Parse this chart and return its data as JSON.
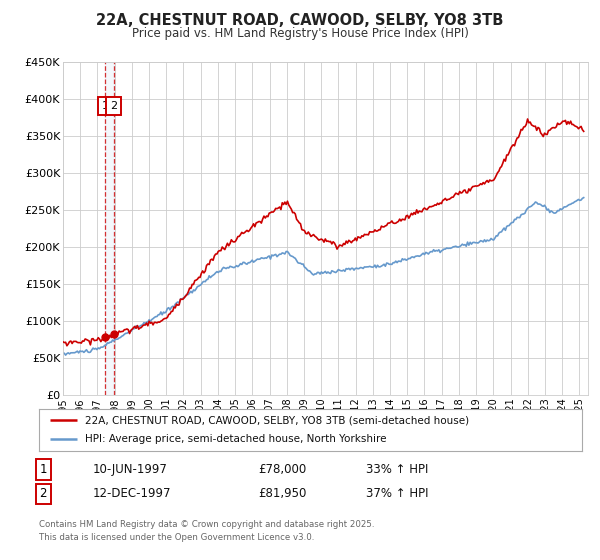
{
  "title": "22A, CHESTNUT ROAD, CAWOOD, SELBY, YO8 3TB",
  "subtitle": "Price paid vs. HM Land Registry's House Price Index (HPI)",
  "legend_label_red": "22A, CHESTNUT ROAD, CAWOOD, SELBY, YO8 3TB (semi-detached house)",
  "legend_label_blue": "HPI: Average price, semi-detached house, North Yorkshire",
  "xmin": 1995.0,
  "xmax": 2025.5,
  "ymin": 0,
  "ymax": 450000,
  "yticks": [
    0,
    50000,
    100000,
    150000,
    200000,
    250000,
    300000,
    350000,
    400000,
    450000
  ],
  "ytick_labels": [
    "£0",
    "£50K",
    "£100K",
    "£150K",
    "£200K",
    "£250K",
    "£300K",
    "£350K",
    "£400K",
    "£450K"
  ],
  "color_red": "#cc0000",
  "color_blue": "#6699cc",
  "color_vline": "#cc0000",
  "background_color": "#ffffff",
  "plot_bg_color": "#ffffff",
  "grid_color": "#cccccc",
  "transaction1_x": 1997.44,
  "transaction2_x": 1997.95,
  "transaction1_y": 78000,
  "transaction2_y": 81950,
  "annotation1": "1",
  "annotation2": "2",
  "table_row1": [
    "1",
    "10-JUN-1997",
    "£78,000",
    "33% ↑ HPI"
  ],
  "table_row2": [
    "2",
    "12-DEC-1997",
    "£81,950",
    "37% ↑ HPI"
  ],
  "footer": "Contains HM Land Registry data © Crown copyright and database right 2025.\nThis data is licensed under the Open Government Licence v3.0.",
  "xticks": [
    1995,
    1996,
    1997,
    1998,
    1999,
    2000,
    2001,
    2002,
    2003,
    2004,
    2005,
    2006,
    2007,
    2008,
    2009,
    2010,
    2011,
    2012,
    2013,
    2014,
    2015,
    2016,
    2017,
    2018,
    2019,
    2020,
    2021,
    2022,
    2023,
    2024,
    2025
  ]
}
